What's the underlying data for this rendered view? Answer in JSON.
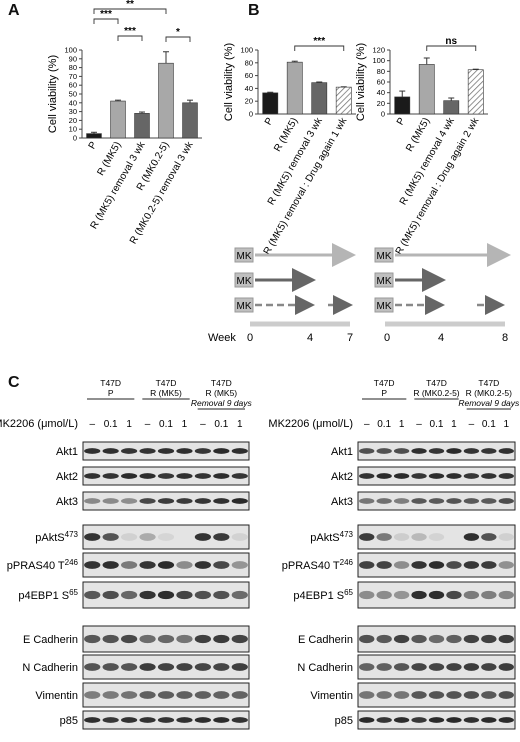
{
  "panels": {
    "A": "A",
    "B": "B",
    "C": "C"
  },
  "common": {
    "ylabel": "Cell viability (%)"
  },
  "chart_data": [
    {
      "id": "A",
      "type": "bar",
      "categories": [
        "P",
        "R (MK5)",
        "R (MK5) removal 3 wk",
        "R (MK0.2-5)",
        "R (MK0.2-5) removal 3 wk"
      ],
      "values": [
        5,
        42,
        28,
        85,
        40
      ],
      "errors": [
        1.5,
        1,
        1.5,
        13,
        3
      ],
      "colors": [
        "#1a1a1a",
        "#a8a8a8",
        "#666666",
        "#a8a8a8",
        "#666666"
      ],
      "hatch": [
        false,
        false,
        false,
        false,
        false
      ],
      "ylabel": "Cell viability (%)",
      "ylim": [
        0,
        100
      ],
      "yticks": [
        0,
        10,
        20,
        30,
        40,
        50,
        60,
        70,
        80,
        90,
        100
      ],
      "significance": [
        {
          "from": 0,
          "to": 1,
          "label": "***"
        },
        {
          "from": 1,
          "to": 2,
          "label": "***"
        },
        {
          "from": 0,
          "to": 3,
          "label": "**"
        },
        {
          "from": 3,
          "to": 4,
          "label": "*"
        }
      ]
    },
    {
      "id": "B1",
      "type": "bar",
      "categories": [
        "P",
        "R (MK5)",
        "R (MK5) removal 3 wk",
        "R (MK5) removal : Drug again 1 wk"
      ],
      "values": [
        33,
        81,
        49,
        42
      ],
      "errors": [
        1,
        1.5,
        1,
        0.5
      ],
      "colors": [
        "#1a1a1a",
        "#a8a8a8",
        "#666666",
        "#ffffff"
      ],
      "hatch": [
        false,
        false,
        false,
        true
      ],
      "ylabel": "Cell viability (%)",
      "ylim": [
        0,
        100
      ],
      "yticks": [
        0,
        20,
        40,
        60,
        80,
        100
      ],
      "significance": [
        {
          "from": 1,
          "to": 3,
          "label": "***"
        }
      ]
    },
    {
      "id": "B2",
      "type": "bar",
      "categories": [
        "P",
        "R (MK5)",
        "R (MK5) removal 4 wk",
        "R (MK5) removal : Drug again 2 wk"
      ],
      "values": [
        32,
        93,
        25,
        83
      ],
      "errors": [
        11,
        12,
        5,
        1
      ],
      "colors": [
        "#1a1a1a",
        "#a8a8a8",
        "#666666",
        "#ffffff"
      ],
      "hatch": [
        false,
        false,
        false,
        true
      ],
      "ylabel": "Cell viability (%)",
      "ylim": [
        0,
        120
      ],
      "yticks": [
        0,
        20,
        40,
        60,
        80,
        100,
        120
      ],
      "significance": [
        {
          "from": 1,
          "to": 3,
          "label": "ns"
        }
      ]
    }
  ],
  "timeline": {
    "box_label": "MK",
    "week_label": "Week",
    "left_ticks": [
      "0",
      "4",
      "7"
    ],
    "right_ticks": [
      "0",
      "4",
      "8"
    ]
  },
  "blots": {
    "treatment_label": "MK2206 (μmol/L)",
    "dose_labels": [
      "–",
      "0.1",
      "1"
    ],
    "left": {
      "groups": [
        {
          "line1": "T47D",
          "line2": "P",
          "line3": ""
        },
        {
          "line1": "T47D",
          "line2": "R (MK5)",
          "line3": ""
        },
        {
          "line1": "T47D",
          "line2": "R (MK5)",
          "line3": "Removal 9 days"
        }
      ]
    },
    "right": {
      "groups": [
        {
          "line1": "T47D",
          "line2": "P",
          "line3": ""
        },
        {
          "line1": "T47D",
          "line2": "R (MK0.2-5)",
          "line3": ""
        },
        {
          "line1": "T47D",
          "line2": "R (MK0.2-5)",
          "line3": "Removal 9 days"
        }
      ]
    },
    "proteins": [
      {
        "name": "Akt1",
        "sup": ""
      },
      {
        "name": "Akt2",
        "sup": ""
      },
      {
        "name": "Akt3",
        "sup": ""
      },
      {
        "name": "pAktS",
        "sup": "473"
      },
      {
        "name": "pPRAS40 T",
        "sup": "246"
      },
      {
        "name": "p4EBP1 S",
        "sup": "65"
      },
      {
        "name": "E Cadherin",
        "sup": ""
      },
      {
        "name": "N Cadherin",
        "sup": ""
      },
      {
        "name": "Vimentin",
        "sup": ""
      },
      {
        "name": "p85",
        "sup": ""
      }
    ]
  }
}
